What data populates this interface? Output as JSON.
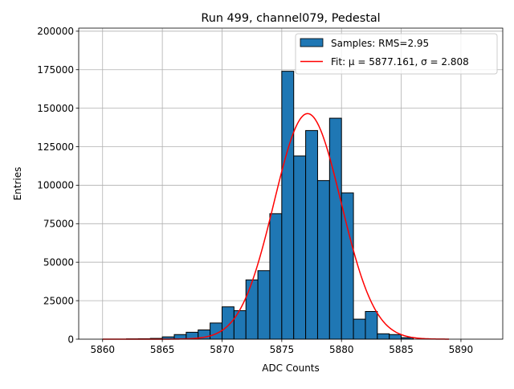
{
  "chart_data": {
    "type": "bar",
    "title": "Run 499, channel079, Pedestal",
    "xlabel": "ADC Counts",
    "ylabel": "Entries",
    "xlim": [
      5858,
      5893.5
    ],
    "ylim": [
      0,
      202000
    ],
    "xticks": [
      5860,
      5865,
      5870,
      5875,
      5880,
      5885,
      5890
    ],
    "yticks": [
      0,
      25000,
      50000,
      75000,
      100000,
      125000,
      150000,
      175000,
      200000
    ],
    "grid": true,
    "legend_position": "top-right",
    "bar_color": "#1f77b4",
    "fit_color": "#ff0000",
    "bin_width": 1,
    "bins": [
      {
        "left": 5862,
        "value": 200
      },
      {
        "left": 5863,
        "value": 300
      },
      {
        "left": 5864,
        "value": 500
      },
      {
        "left": 5865,
        "value": 1500
      },
      {
        "left": 5866,
        "value": 3000
      },
      {
        "left": 5867,
        "value": 4500
      },
      {
        "left": 5868,
        "value": 6000
      },
      {
        "left": 5869,
        "value": 10500
      },
      {
        "left": 5870,
        "value": 21000
      },
      {
        "left": 5871,
        "value": 18500
      },
      {
        "left": 5872,
        "value": 38500
      },
      {
        "left": 5873,
        "value": 44500
      },
      {
        "left": 5874,
        "value": 81500
      },
      {
        "left": 5875,
        "value": 174000
      },
      {
        "left": 5876,
        "value": 119000
      },
      {
        "left": 5877,
        "value": 135500
      },
      {
        "left": 5878,
        "value": 103000
      },
      {
        "left": 5879,
        "value": 143500
      },
      {
        "left": 5880,
        "value": 95000
      },
      {
        "left": 5881,
        "value": 13000
      },
      {
        "left": 5882,
        "value": 18000
      },
      {
        "left": 5883,
        "value": 3500
      },
      {
        "left": 5884,
        "value": 3000
      },
      {
        "left": 5885,
        "value": 1000
      }
    ],
    "fit": {
      "mu": 5877.161,
      "sigma": 2.808,
      "amplitude": 146500,
      "x_range": [
        5860,
        5889
      ]
    },
    "legend": [
      {
        "label": "Samples: RMS=2.95",
        "kind": "bar"
      },
      {
        "label": "Fit: μ = 5877.161, σ = 2.808",
        "kind": "line"
      }
    ]
  }
}
